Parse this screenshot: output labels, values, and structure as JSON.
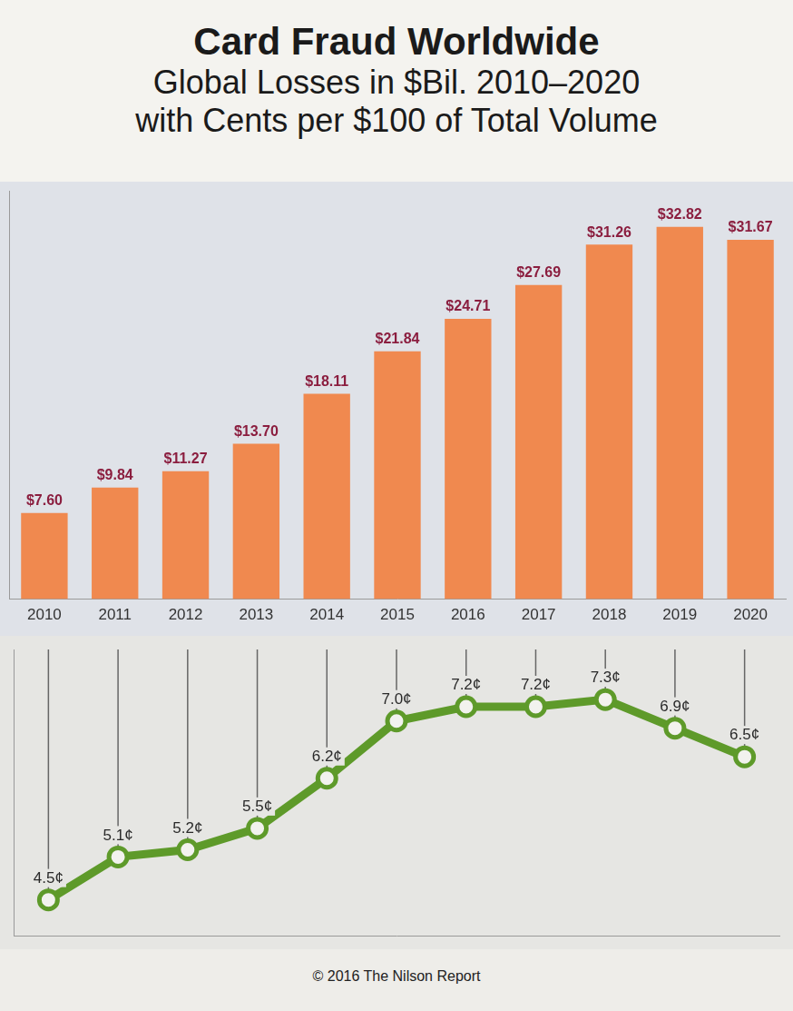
{
  "title": "Card Fraud Worldwide",
  "subtitle": [
    "Global Losses in $Bil. 2010–2020",
    "with Cents per $100 of Total Volume"
  ],
  "footer": "© 2016 The Nilson Report",
  "chart_data": [
    {
      "type": "bar",
      "categories": [
        "2010",
        "2011",
        "2012",
        "2013",
        "2014",
        "2015",
        "2016",
        "2017",
        "2018",
        "2019",
        "2020"
      ],
      "values": [
        7.6,
        9.84,
        11.27,
        13.7,
        18.11,
        21.84,
        24.71,
        27.69,
        31.26,
        32.82,
        31.67
      ],
      "value_labels": [
        "$7.60",
        "$9.84",
        "$11.27",
        "$13.70",
        "$18.11",
        "$21.84",
        "$24.71",
        "$27.69",
        "$31.26",
        "$32.82",
        "$31.67"
      ],
      "color": "#f0894f",
      "ylim": [
        0,
        36
      ],
      "grid": false,
      "data_labels": true,
      "tick_labels": "x"
    },
    {
      "type": "line",
      "categories": [
        "2010",
        "2011",
        "2012",
        "2013",
        "2014",
        "2015",
        "2016",
        "2017",
        "2018",
        "2019",
        "2020"
      ],
      "values": [
        4.5,
        5.1,
        5.2,
        5.5,
        6.2,
        7.0,
        7.2,
        7.2,
        7.3,
        6.9,
        6.5
      ],
      "value_labels": [
        "4.5¢",
        "5.1¢",
        "5.2¢",
        "5.5¢",
        "6.2¢",
        "7.0¢",
        "7.2¢",
        "7.2¢",
        "7.3¢",
        "6.9¢",
        "6.5¢"
      ],
      "color": "#5e9a2a",
      "marker": "circle",
      "ylim": [
        4,
        8
      ],
      "grid": false,
      "data_labels": true,
      "tick_labels": false
    }
  ]
}
